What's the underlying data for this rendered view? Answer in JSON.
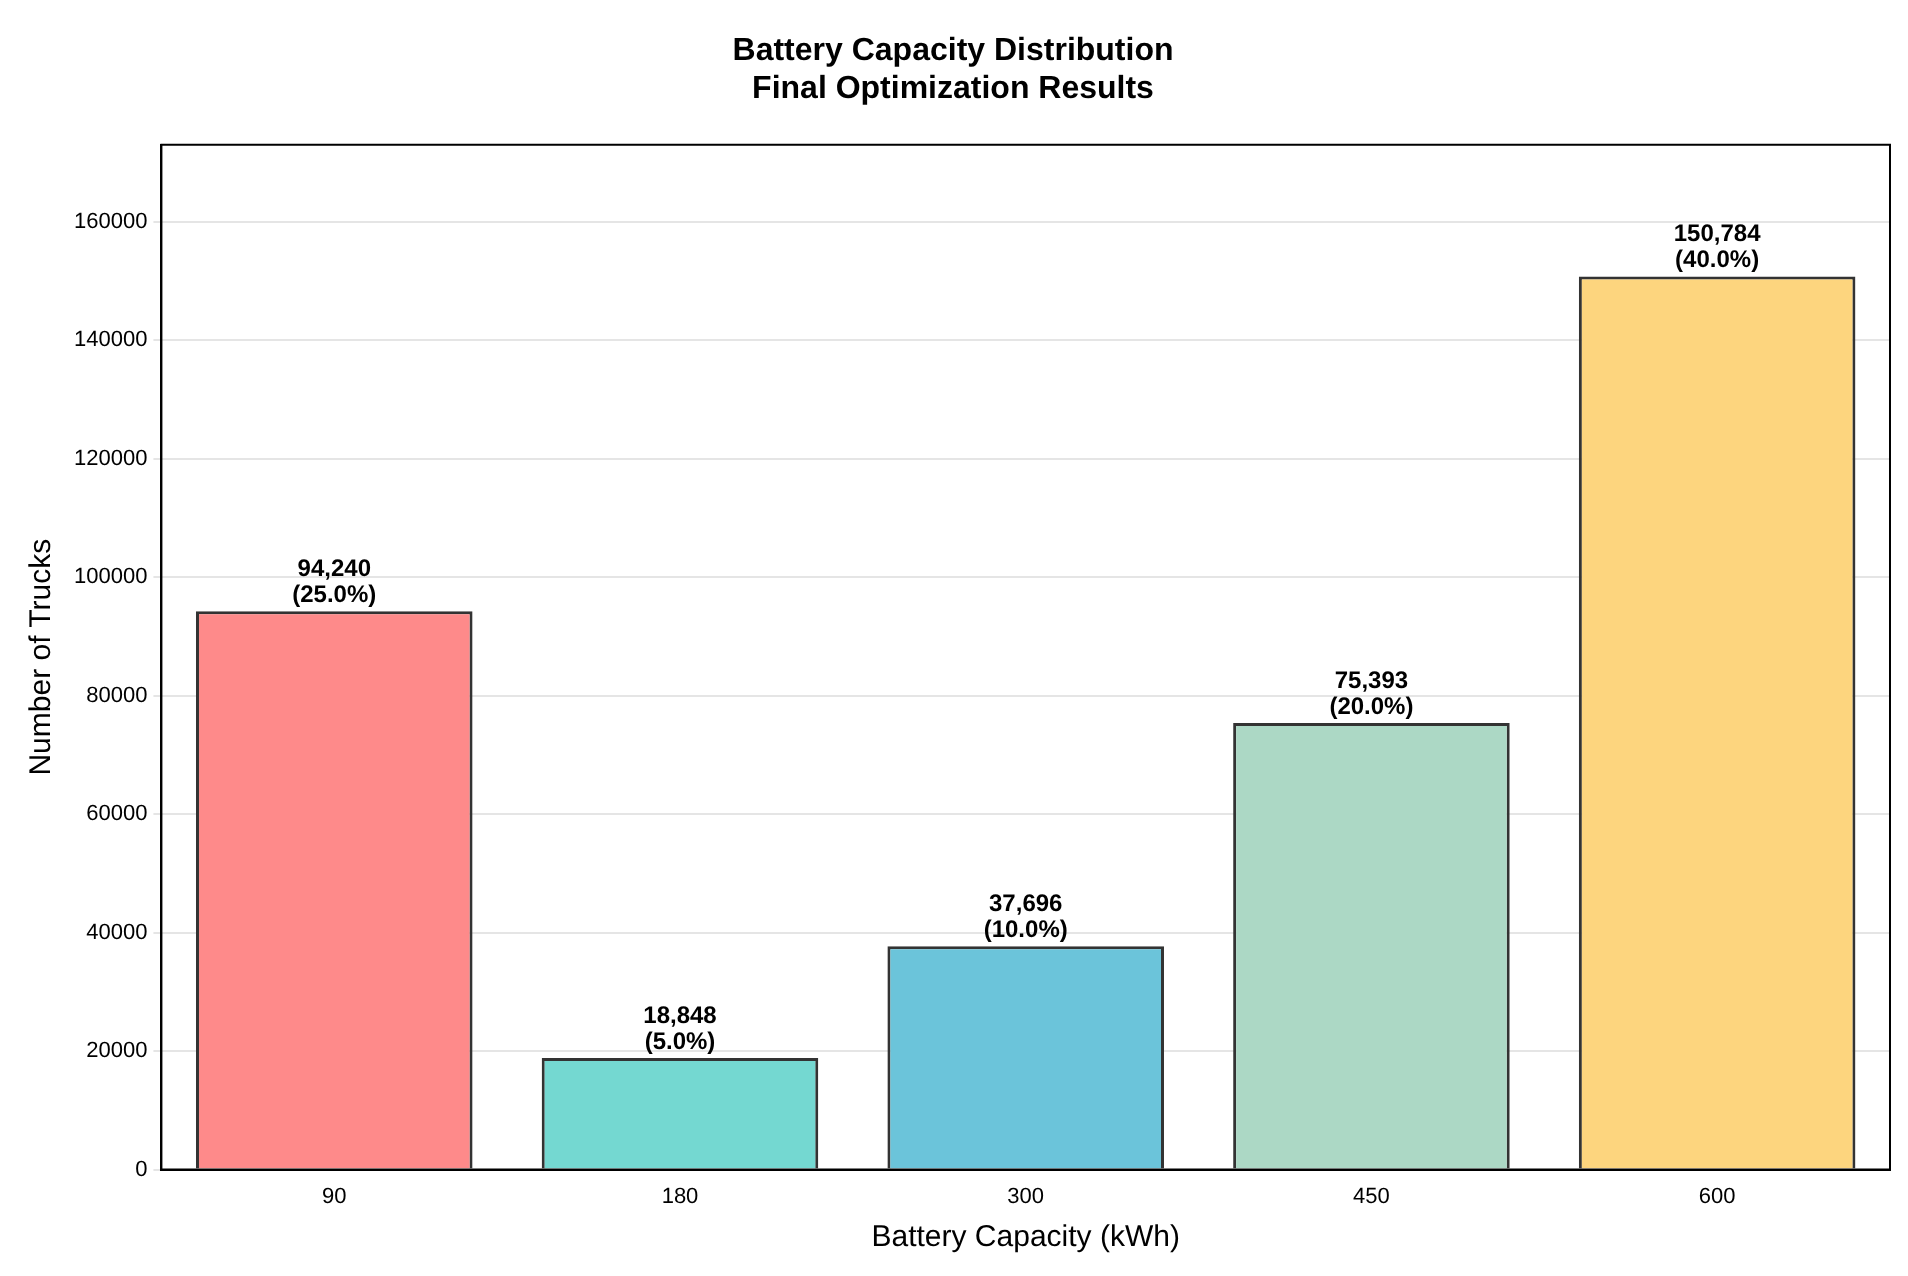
{
  "chart_data": {
    "type": "bar",
    "title": "Battery Capacity Distribution\nFinal Optimization Results",
    "xlabel": "Battery Capacity (kWh)",
    "ylabel": "Number of Trucks",
    "categories": [
      "90",
      "180",
      "300",
      "450",
      "600"
    ],
    "values": [
      94240,
      18848,
      37696,
      75393,
      150784
    ],
    "colors": [
      "#fe8a8a",
      "#74d8d1",
      "#6bc4da",
      "#acd8c5",
      "#fdd57e"
    ],
    "value_labels": [
      "94,240\n(25.0%)",
      "18,848\n(5.0%)",
      "37,696\n(10.0%)",
      "75,393\n(20.0%)",
      "150,784\n(40.0%)"
    ],
    "ylim": [
      0,
      173000
    ],
    "yticks": [
      0,
      20000,
      40000,
      60000,
      80000,
      100000,
      120000,
      140000,
      160000
    ],
    "grid": "y",
    "legend": false
  }
}
